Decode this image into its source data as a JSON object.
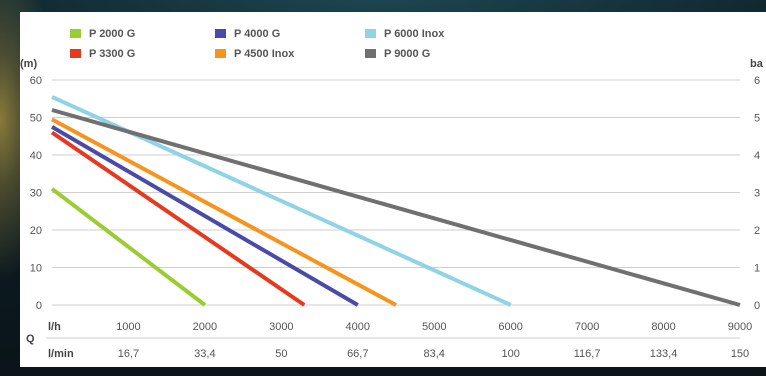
{
  "chart_data": {
    "type": "line",
    "legend": [
      {
        "name": "P 2000 G",
        "color": "#9acd32"
      },
      {
        "name": "P 3300 G",
        "color": "#e53a1f"
      },
      {
        "name": "P 4000 G",
        "color": "#4a4aa8"
      },
      {
        "name": "P 4500 Inox",
        "color": "#f7941d"
      },
      {
        "name": "P 6000 Inox",
        "color": "#8ed3e6"
      },
      {
        "name": "P 9000 G",
        "color": "#707070"
      }
    ],
    "series": [
      {
        "name": "P 2000 G",
        "color": "#9acd32",
        "x": [
          0,
          2000
        ],
        "y": [
          31,
          0
        ]
      },
      {
        "name": "P 3300 G",
        "color": "#e53a1f",
        "x": [
          0,
          3300
        ],
        "y": [
          46,
          0
        ]
      },
      {
        "name": "P 4000 G",
        "color": "#4a4aa8",
        "x": [
          0,
          4000
        ],
        "y": [
          47.5,
          0
        ]
      },
      {
        "name": "P 4500 Inox",
        "color": "#f7941d",
        "x": [
          0,
          4500
        ],
        "y": [
          49.5,
          0
        ]
      },
      {
        "name": "P 6000 Inox",
        "color": "#8ed3e6",
        "x": [
          0,
          6000
        ],
        "y": [
          55.5,
          0
        ]
      },
      {
        "name": "P 9000 G",
        "color": "#707070",
        "x": [
          0,
          9000
        ],
        "y": [
          52,
          0
        ]
      }
    ],
    "y_left_unit": "(m)",
    "y_right_unit": "ba",
    "y_left_ticks": [
      "0",
      "10",
      "20",
      "30",
      "40",
      "50",
      "60"
    ],
    "y_right_ticks": [
      "0",
      "1",
      "2",
      "3",
      "4",
      "5",
      "6"
    ],
    "ylim": [
      0,
      60
    ],
    "xlim": [
      0,
      9000
    ],
    "x_label": "Q",
    "x_unit_lh": "l/h",
    "x_unit_lmin": "l/min",
    "x_ticks_lh": [
      "1000",
      "2000",
      "3000",
      "4000",
      "5000",
      "6000",
      "7000",
      "8000",
      "9000"
    ],
    "x_ticks_lmin": [
      "16,7",
      "33,4",
      "50",
      "66,7",
      "83,4",
      "100",
      "116,7",
      "133,4",
      "150"
    ],
    "grid": "horizontal"
  }
}
